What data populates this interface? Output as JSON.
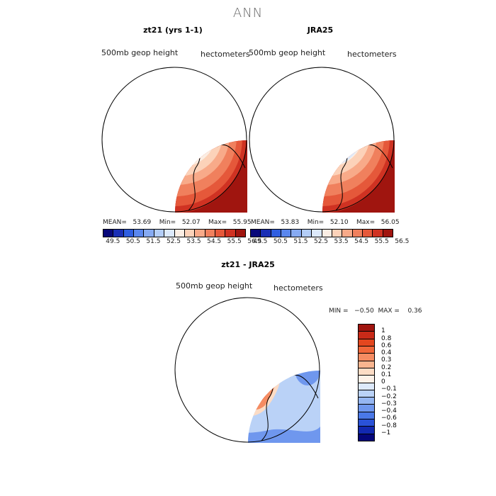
{
  "figure": {
    "title": "ANN"
  },
  "panels": [
    {
      "title": "zt21 (yrs 1-1)",
      "variable": "500mb geop height",
      "units": "hectometers",
      "mean_label": "MEAN=",
      "mean": "53.69",
      "min_label": "Min=",
      "min": "52.07",
      "max_label": "Max=",
      "max": "55.95"
    },
    {
      "title": "JRA25",
      "variable": "500mb geop height",
      "units": "hectometers",
      "mean_label": "MEAN=",
      "mean": "53.83",
      "min_label": "Min=",
      "min": "52.10",
      "max_label": "Max=",
      "max": "56.05"
    }
  ],
  "diff_panel": {
    "title": "zt21 - JRA25",
    "variable": "500mb geop height",
    "units": "hectometers",
    "min_label": "MIN =",
    "min": "−0.50",
    "max_label": "MAX =",
    "max": "0.36"
  },
  "colorbar_main": {
    "colors": [
      "#08087a",
      "#1a2fb5",
      "#2f5ee0",
      "#5a87ee",
      "#86aaf2",
      "#b3cdf7",
      "#dce9fb",
      "#fbeee4",
      "#fcd2b9",
      "#f8aa89",
      "#f0805d",
      "#e5583a",
      "#cf3222",
      "#a0150f"
    ],
    "labels": [
      "49.5",
      "50.5",
      "51.5",
      "52.5",
      "53.5",
      "54.5",
      "55.5",
      "56.5"
    ]
  },
  "colorbar_diff": {
    "colors": [
      "#a0150f",
      "#c92a18",
      "#e3471f",
      "#f0673a",
      "#f58c62",
      "#f9b58f",
      "#fcdcc5",
      "#fdf1e8",
      "#dde9fb",
      "#bad2f7",
      "#95b6f2",
      "#6f97ee",
      "#4a78e8",
      "#2a52d8",
      "#1228b0",
      "#05067a"
    ],
    "labels": [
      "1",
      "0.8",
      "0.6",
      "0.4",
      "0.3",
      "0.2",
      "0.1",
      "0",
      "−0.1",
      "−0.2",
      "−0.3",
      "−0.4",
      "−0.6",
      "−0.8",
      "−1"
    ]
  }
}
